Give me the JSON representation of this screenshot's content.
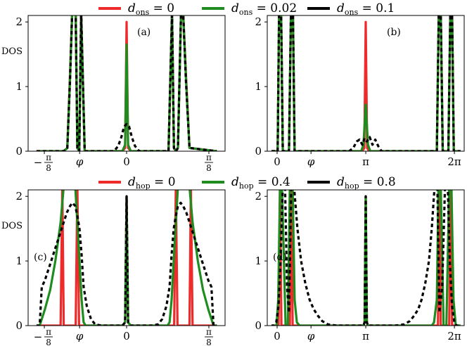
{
  "chart_data": [
    {
      "panel": "a",
      "type": "line",
      "label": "(a)",
      "ylabel": "DOS",
      "ylim": [
        0,
        2.1
      ],
      "yticks": [
        "0",
        "1",
        "2"
      ],
      "xlim": [
        -0.47,
        0.47
      ],
      "xticks": [
        {
          "x": -0.3927,
          "label": "−π/8"
        },
        {
          "x": -0.2244,
          "label": "φ"
        },
        {
          "x": 0,
          "label": "0"
        },
        {
          "x": 0.3927,
          "label": "π/8"
        }
      ],
      "series": [
        {
          "name": "d_ons = 0",
          "color": "#ee2a2a",
          "x": [
            -0.43,
            -0.3,
            -0.283,
            -0.27,
            -0.26,
            -0.243,
            -0.235,
            -0.226,
            -0.217,
            -0.2,
            -0.02,
            -0.007,
            0,
            0.007,
            0.02,
            0.2,
            0.217,
            0.226,
            0.235,
            0.245,
            0.26,
            0.27,
            0.283,
            0.3,
            0.43
          ],
          "y": [
            0,
            0,
            0.05,
            1.2,
            2.15,
            2.15,
            0.05,
            0,
            2.15,
            0,
            0,
            0.05,
            2.0,
            0.05,
            0,
            0,
            2.15,
            0.05,
            0,
            0.05,
            2.15,
            2.15,
            1.2,
            0.05,
            0
          ]
        },
        {
          "name": "d_ons = 0.02",
          "color": "#1e8c1e",
          "x": [
            -0.43,
            -0.3,
            -0.283,
            -0.27,
            -0.26,
            -0.243,
            -0.235,
            -0.226,
            -0.217,
            -0.2,
            -0.02,
            -0.007,
            0,
            0.007,
            0.02,
            0.2,
            0.217,
            0.226,
            0.235,
            0.245,
            0.26,
            0.27,
            0.283,
            0.3,
            0.43
          ],
          "y": [
            0,
            0,
            0.05,
            1.15,
            2.15,
            2.15,
            0.05,
            0,
            2.15,
            0,
            0,
            0.1,
            1.65,
            0.1,
            0,
            0,
            2.15,
            0.05,
            0,
            0.05,
            2.15,
            2.15,
            1.15,
            0.05,
            0
          ]
        },
        {
          "name": "d_ons = 0.1",
          "color": "#000000",
          "dashed": true,
          "x": [
            -0.43,
            -0.3,
            -0.283,
            -0.27,
            -0.26,
            -0.243,
            -0.235,
            -0.226,
            -0.217,
            -0.2,
            -0.06,
            -0.04,
            -0.025,
            -0.012,
            0,
            0.012,
            0.025,
            0.04,
            0.06,
            0.2,
            0.217,
            0.226,
            0.235,
            0.245,
            0.26,
            0.27,
            0.283,
            0.3,
            0.43
          ],
          "y": [
            0,
            0,
            0.05,
            1.1,
            2.15,
            2.15,
            0.05,
            0,
            2.15,
            0,
            0,
            0.08,
            0.22,
            0.38,
            0.42,
            0.38,
            0.22,
            0.08,
            0,
            0,
            2.15,
            0.05,
            0,
            0.05,
            2.15,
            2.15,
            1.1,
            0.05,
            0
          ]
        }
      ]
    },
    {
      "panel": "b",
      "type": "line",
      "label": "(b)",
      "ylabel": "",
      "ylim": [
        0,
        2.1
      ],
      "yticks": [
        "0",
        "1",
        "2"
      ],
      "xlim": [
        -0.35,
        6.63
      ],
      "xticks": [
        {
          "x": 0,
          "label": "0"
        },
        {
          "x": 1.2,
          "label": "φ"
        },
        {
          "x": 3.1416,
          "label": "π"
        },
        {
          "x": 6.2832,
          "label": "2π"
        }
      ],
      "series": [
        {
          "name": "d_ons = 0",
          "color": "#ee2a2a",
          "x": [
            -0.2,
            0.02,
            0.07,
            0.14,
            0.2,
            0.42,
            0.49,
            0.56,
            0.62,
            3.02,
            3.09,
            3.14,
            3.19,
            3.26,
            5.66,
            5.73,
            5.8,
            5.87,
            6.07,
            6.14,
            6.2,
            6.26,
            6.5
          ],
          "y": [
            0,
            0,
            2.15,
            2.15,
            0,
            0,
            2.15,
            2.15,
            0,
            0,
            0.05,
            2.0,
            0.05,
            0,
            0,
            2.15,
            2.15,
            0,
            0,
            2.15,
            2.15,
            0,
            0
          ]
        },
        {
          "name": "d_ons = 0.02",
          "color": "#1e8c1e",
          "x": [
            -0.2,
            0.02,
            0.07,
            0.14,
            0.2,
            0.42,
            0.49,
            0.56,
            0.62,
            2.98,
            3.06,
            3.14,
            3.22,
            3.3,
            5.66,
            5.73,
            5.8,
            5.87,
            6.07,
            6.14,
            6.2,
            6.26,
            6.5
          ],
          "y": [
            0,
            0,
            2.15,
            2.15,
            0,
            0,
            2.15,
            2.15,
            0,
            0,
            0.1,
            0.72,
            0.1,
            0,
            0,
            2.15,
            2.15,
            0,
            0,
            2.15,
            2.15,
            0,
            0
          ]
        },
        {
          "name": "d_ons = 0.1",
          "color": "#000000",
          "dashed": true,
          "x": [
            -0.2,
            0.02,
            0.07,
            0.14,
            0.2,
            0.42,
            0.49,
            0.56,
            0.62,
            2.55,
            2.7,
            2.82,
            2.92,
            3.02,
            3.1,
            3.18,
            3.28,
            3.38,
            3.48,
            3.58,
            3.7,
            5.66,
            5.73,
            5.8,
            5.87,
            6.07,
            6.14,
            6.2,
            6.26,
            6.5
          ],
          "y": [
            0,
            0,
            2.15,
            2.15,
            0,
            0,
            2.15,
            2.15,
            0,
            0,
            0.05,
            0.15,
            0.18,
            0.1,
            0.2,
            0.15,
            0.22,
            0.1,
            0.18,
            0.08,
            0,
            0,
            2.15,
            2.15,
            0,
            0,
            2.15,
            2.15,
            0,
            0
          ]
        }
      ]
    },
    {
      "panel": "c",
      "type": "line",
      "label": "(c)",
      "ylabel": "DOS",
      "ylim": [
        0,
        2.1
      ],
      "yticks": [
        "0",
        "1",
        "2"
      ],
      "xlim": [
        -0.47,
        0.47
      ],
      "xticks": [
        {
          "x": -0.3927,
          "label": "−π/8"
        },
        {
          "x": -0.2244,
          "label": "φ"
        },
        {
          "x": 0,
          "label": "0"
        },
        {
          "x": 0.3927,
          "label": "π/8"
        }
      ],
      "series": [
        {
          "name": "d_hop = 0",
          "color": "#ee2a2a",
          "x": [
            -0.43,
            -0.315,
            -0.307,
            -0.3,
            -0.243,
            -0.235,
            -0.227,
            -0.02,
            -0.007,
            0,
            0.007,
            0.02,
            0.227,
            0.235,
            0.243,
            0.3,
            0.307,
            0.315,
            0.43
          ],
          "y": [
            0,
            0,
            2.15,
            0,
            0,
            2.15,
            0,
            0,
            0.05,
            2.0,
            0.05,
            0,
            0,
            2.15,
            0,
            0,
            2.15,
            0,
            0
          ]
        },
        {
          "name": "d_hop = 0.4",
          "color": "#1e8c1e",
          "x": [
            -0.43,
            -0.415,
            -0.39,
            -0.365,
            -0.34,
            -0.315,
            -0.3,
            -0.28,
            -0.26,
            -0.245,
            -0.235,
            -0.225,
            -0.215,
            -0.205,
            -0.195,
            -0.02,
            -0.007,
            0,
            0.007,
            0.02,
            0.195,
            0.205,
            0.215,
            0.225,
            0.235,
            0.245,
            0.26,
            0.28,
            0.3,
            0.315,
            0.34,
            0.365,
            0.39,
            0.415,
            0.43
          ],
          "y": [
            0,
            0,
            0.25,
            0.55,
            1.0,
            1.6,
            2.15,
            2.15,
            2.15,
            2.15,
            1.6,
            1.0,
            0.4,
            0.05,
            0,
            0,
            0.05,
            2.0,
            0.05,
            0,
            0,
            0.05,
            0.4,
            1.0,
            1.6,
            2.15,
            2.15,
            2.15,
            2.15,
            1.6,
            1.0,
            0.55,
            0.25,
            0,
            0
          ]
        },
        {
          "name": "d_hop = 0.8",
          "color": "#000000",
          "dashed": true,
          "x": [
            -0.43,
            -0.415,
            -0.405,
            -0.39,
            -0.375,
            -0.36,
            -0.345,
            -0.33,
            -0.315,
            -0.3,
            -0.285,
            -0.27,
            -0.258,
            -0.245,
            -0.235,
            -0.225,
            -0.215,
            -0.205,
            -0.19,
            -0.17,
            -0.15,
            -0.12,
            -0.02,
            -0.007,
            0,
            0.007,
            0.02,
            0.12,
            0.15,
            0.17,
            0.19,
            0.205,
            0.215,
            0.225,
            0.235,
            0.245,
            0.258,
            0.27,
            0.285,
            0.3,
            0.315,
            0.33,
            0.345,
            0.36,
            0.375,
            0.39,
            0.405,
            0.415,
            0.43
          ],
          "y": [
            0,
            0,
            0.6,
            0.7,
            0.85,
            1.0,
            1.15,
            1.3,
            1.45,
            1.6,
            1.75,
            1.85,
            1.9,
            1.85,
            1.7,
            1.5,
            1.1,
            0.6,
            0.3,
            0.1,
            0.02,
            0,
            0,
            0.05,
            2.0,
            0.05,
            0,
            0,
            0.02,
            0.1,
            0.3,
            0.6,
            1.1,
            1.5,
            1.7,
            1.85,
            1.9,
            1.85,
            1.75,
            1.6,
            1.45,
            1.3,
            1.15,
            1.0,
            0.85,
            0.7,
            0.6,
            0,
            0
          ]
        }
      ]
    },
    {
      "panel": "d",
      "type": "line",
      "label": "(d)",
      "ylabel": "",
      "ylim": [
        0,
        2.1
      ],
      "yticks": [
        "0",
        "1",
        "2"
      ],
      "xlim": [
        -0.35,
        6.63
      ],
      "xticks": [
        {
          "x": 0,
          "label": "0"
        },
        {
          "x": 1.2,
          "label": "φ"
        },
        {
          "x": 3.1416,
          "label": "π"
        },
        {
          "x": 6.2832,
          "label": "2π"
        }
      ],
      "series": [
        {
          "name": "d_hop = 0",
          "color": "#ee2a2a",
          "x": [
            -0.2,
            0.05,
            0.1,
            0.15,
            0.45,
            0.5,
            0.55,
            3.06,
            3.1,
            3.14,
            3.18,
            3.22,
            5.7,
            5.75,
            5.8,
            6.1,
            6.15,
            6.2,
            6.5
          ],
          "y": [
            0,
            0,
            2.15,
            0,
            0,
            2.15,
            0,
            0,
            0.05,
            2.0,
            0.05,
            0,
            0,
            2.15,
            0,
            0,
            2.15,
            0,
            0
          ]
        },
        {
          "name": "d_hop = 0.4",
          "color": "#1e8c1e",
          "x": [
            -0.2,
            -0.02,
            0.04,
            0.1,
            0.17,
            0.3,
            0.38,
            0.45,
            0.55,
            0.62,
            0.7,
            0.8,
            3.06,
            3.1,
            3.14,
            3.18,
            3.22,
            5.48,
            5.56,
            5.66,
            5.72,
            5.8,
            5.9,
            6.0,
            6.1,
            6.18,
            6.25,
            6.33,
            6.5
          ],
          "y": [
            0,
            0,
            0.4,
            2.15,
            2.15,
            0,
            0,
            2.15,
            2.15,
            0.4,
            0.05,
            0,
            0,
            0.05,
            2.0,
            0.05,
            0,
            0,
            0.05,
            0.4,
            2.15,
            2.15,
            0,
            0,
            2.15,
            2.15,
            0.4,
            0,
            0
          ]
        },
        {
          "name": "d_hop = 0.8",
          "color": "#000000",
          "dashed": true,
          "x": [
            -0.2,
            -0.1,
            -0.03,
            0.05,
            0.12,
            0.2,
            0.28,
            0.35,
            0.42,
            0.5,
            0.6,
            0.72,
            0.85,
            1.0,
            1.15,
            1.3,
            1.45,
            1.6,
            1.8,
            2.1,
            3.06,
            3.1,
            3.14,
            3.18,
            3.22,
            4.2,
            4.5,
            4.7,
            4.85,
            5.0,
            5.12,
            5.25,
            5.38,
            5.48,
            5.58,
            5.68,
            5.75,
            5.85,
            5.95,
            6.05,
            6.12,
            6.2,
            6.28,
            6.36,
            6.5
          ],
          "y": [
            0,
            0,
            0.05,
            0.3,
            1.0,
            2.15,
            2.15,
            0.6,
            0.2,
            2.15,
            2.15,
            1.5,
            1.0,
            0.65,
            0.4,
            0.25,
            0.15,
            0.07,
            0.02,
            0,
            0,
            0.05,
            2.0,
            0.05,
            0,
            0,
            0.02,
            0.07,
            0.15,
            0.25,
            0.4,
            0.65,
            1.0,
            1.5,
            2.15,
            2.15,
            0.2,
            0.6,
            2.15,
            2.15,
            1.0,
            0.3,
            0.05,
            0,
            0
          ]
        }
      ]
    }
  ],
  "legends": {
    "top": [
      {
        "sym": "d",
        "sub": "ons",
        "rest": " = 0",
        "color": "#ee2a2a"
      },
      {
        "sym": "d",
        "sub": "ons",
        "rest": " = 0.02",
        "color": "#1e8c1e"
      },
      {
        "sym": "d",
        "sub": "ons",
        "rest": " = 0.1",
        "color": "#000000"
      }
    ],
    "bottom": [
      {
        "sym": "d",
        "sub": "hop",
        "rest": " = 0",
        "color": "#ee2a2a"
      },
      {
        "sym": "d",
        "sub": "hop",
        "rest": " = 0.4",
        "color": "#1e8c1e"
      },
      {
        "sym": "d",
        "sub": "hop",
        "rest": " = 0.8",
        "color": "#000000"
      }
    ]
  }
}
